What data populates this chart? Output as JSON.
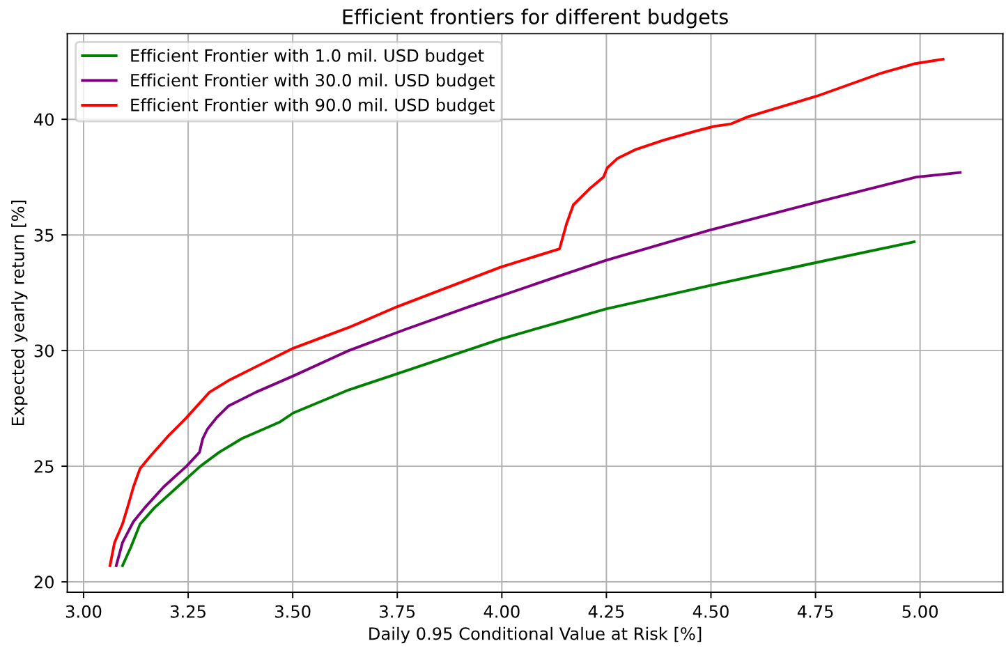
{
  "chart_data": {
    "type": "line",
    "title": "Efficient frontiers for different budgets",
    "xlabel": "Daily 0.95 Conditional Value at Risk [%]",
    "ylabel": "Expected yearly return [%]",
    "series": [
      {
        "name": "Efficient Frontier with 1.0 mil. USD budget",
        "color": "#008000",
        "x": [
          3.093,
          3.113,
          3.135,
          3.169,
          3.224,
          3.279,
          3.324,
          3.379,
          3.468,
          3.501,
          3.634,
          3.75,
          3.997,
          4.132,
          4.249,
          4.495,
          4.75,
          4.986
        ],
        "values": [
          20.7,
          21.5,
          22.5,
          23.2,
          24.1,
          25.0,
          25.6,
          26.2,
          26.9,
          27.3,
          28.3,
          29.0,
          30.5,
          31.2,
          31.8,
          32.8,
          33.8,
          34.7
        ]
      },
      {
        "name": "Efficient Frontier with 30.0 mil. USD budget",
        "color": "#800080",
        "x": [
          3.078,
          3.093,
          3.119,
          3.146,
          3.191,
          3.246,
          3.277,
          3.285,
          3.296,
          3.318,
          3.346,
          3.412,
          3.501,
          3.634,
          3.767,
          3.922,
          4.133,
          4.249,
          4.495,
          4.75,
          4.991,
          5.096
        ],
        "values": [
          20.7,
          21.7,
          22.6,
          23.2,
          24.1,
          25.0,
          25.6,
          26.2,
          26.6,
          27.1,
          27.6,
          28.2,
          28.9,
          30.0,
          30.9,
          31.9,
          33.2,
          33.9,
          35.2,
          36.4,
          37.5,
          37.7
        ]
      },
      {
        "name": "Efficient Frontier with 90.0 mil. USD budget",
        "color": "#ff0000",
        "x": [
          3.063,
          3.074,
          3.093,
          3.108,
          3.119,
          3.135,
          3.158,
          3.202,
          3.246,
          3.301,
          3.346,
          3.412,
          3.501,
          3.634,
          3.75,
          3.996,
          4.138,
          4.155,
          4.171,
          4.21,
          4.243,
          4.252,
          4.276,
          4.321,
          4.387,
          4.465,
          4.509,
          4.548,
          4.587,
          4.753,
          4.908,
          4.986,
          5.055
        ],
        "values": [
          20.7,
          21.7,
          22.5,
          23.4,
          24.1,
          24.9,
          25.4,
          26.3,
          27.1,
          28.2,
          28.7,
          29.3,
          30.1,
          31.0,
          31.9,
          33.6,
          34.4,
          35.5,
          36.3,
          37.0,
          37.5,
          37.9,
          38.3,
          38.7,
          39.1,
          39.5,
          39.7,
          39.8,
          40.1,
          41.0,
          42.0,
          42.4,
          42.6
        ]
      }
    ],
    "xlim": [
      2.961,
      5.198
    ],
    "ylim": [
      19.55,
      43.7
    ],
    "xticks": [
      {
        "value": 3,
        "label": "3.00"
      },
      {
        "value": 3.25,
        "label": "3.25"
      },
      {
        "value": 3.5,
        "label": "3.50"
      },
      {
        "value": 3.75,
        "label": "3.75"
      },
      {
        "value": 4,
        "label": "4.00"
      },
      {
        "value": 4.25,
        "label": "4.25"
      },
      {
        "value": 4.5,
        "label": "4.50"
      },
      {
        "value": 4.75,
        "label": "4.75"
      },
      {
        "value": 5,
        "label": "5.00"
      }
    ],
    "yticks": [
      20,
      25,
      30,
      35,
      40
    ],
    "grid": true,
    "legend": "top left",
    "marker": "none",
    "line_style": "solid"
  }
}
